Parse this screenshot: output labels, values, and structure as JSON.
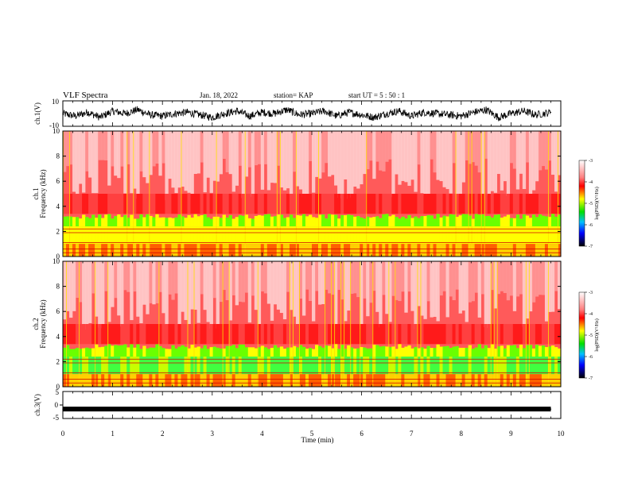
{
  "header": {
    "title": "VLF Spectra",
    "date": "Jan. 18, 2022",
    "station": "station= KAP",
    "start": "start  UT =   5 : 50 : 1"
  },
  "chart_data": [
    {
      "type": "line",
      "panel": "ch1-waveform",
      "ylabel": "ch.1(V)",
      "ylim": [
        -10,
        10
      ],
      "yticks": [
        "10",
        "-10"
      ],
      "xlim": [
        0,
        10
      ],
      "x": [
        0.0,
        0.25,
        0.5,
        0.75,
        1.0,
        1.25,
        1.5,
        1.75,
        2.0,
        2.25,
        2.5,
        2.75,
        3.0,
        3.25,
        3.5,
        3.75,
        4.0,
        4.25,
        4.5,
        4.75,
        5.0,
        5.25,
        5.5,
        5.75,
        6.0,
        6.25,
        6.5,
        6.75,
        7.0,
        7.25,
        7.5,
        7.75,
        8.0,
        8.25,
        8.5,
        8.75,
        9.0,
        9.25,
        9.5,
        9.8
      ],
      "y": [
        0,
        -2,
        1,
        -3,
        2,
        0,
        3,
        -1,
        -2,
        0,
        1,
        -1,
        -3,
        0,
        2,
        -2,
        1,
        0,
        3,
        -1,
        0,
        2,
        -2,
        1,
        -1,
        -3,
        0,
        2,
        -2,
        1,
        0,
        -1,
        -2,
        1,
        3,
        -3,
        0,
        2,
        -1,
        1
      ]
    },
    {
      "type": "heatmap",
      "panel": "ch1-spectrogram",
      "ylabel": "Frequency (kHz)",
      "channel_label": "ch.1",
      "ylim": [
        0,
        10
      ],
      "yticks": [
        "0",
        "2",
        "4",
        "6",
        "8",
        "10"
      ],
      "xlim": [
        0,
        10
      ],
      "colorbar": {
        "label": "log(PSD)(V²/Hz)",
        "ticks": [
          "-3",
          "-4",
          "-5",
          "-6",
          "-7"
        ],
        "range": [
          -7,
          -3
        ]
      }
    },
    {
      "type": "heatmap",
      "panel": "ch2-spectrogram",
      "ylabel": "Frequency (kHz)",
      "channel_label": "ch.2",
      "ylim": [
        0,
        10
      ],
      "yticks": [
        "0",
        "2",
        "4",
        "6",
        "8",
        "10"
      ],
      "xlim": [
        0,
        10
      ],
      "colorbar": {
        "label": "log(PSD)(V²/Hz)",
        "ticks": [
          "-3",
          "-4",
          "-5",
          "-6",
          "-7"
        ],
        "range": [
          -7,
          -3
        ]
      }
    },
    {
      "type": "line",
      "panel": "ch3-waveform",
      "ylabel": "ch.3(V)",
      "ylim": [
        -5,
        5
      ],
      "yticks": [
        "5",
        "0",
        "-5"
      ],
      "xlim": [
        0,
        10
      ],
      "x": [
        0,
        9.8
      ],
      "y": [
        -1.5,
        -1.5
      ]
    }
  ],
  "x_axis": {
    "label": "Time (min)",
    "ticks": [
      "0",
      "1",
      "2",
      "3",
      "4",
      "5",
      "6",
      "7",
      "8",
      "9",
      "10"
    ]
  },
  "colors": {
    "spectrogram_low": "#ffffff",
    "spectrogram_mid": "#ff0000",
    "spectrogram_band": "#ffff00",
    "spectrogram_high": "#00e000",
    "colorbar_bottom": "#000000"
  }
}
